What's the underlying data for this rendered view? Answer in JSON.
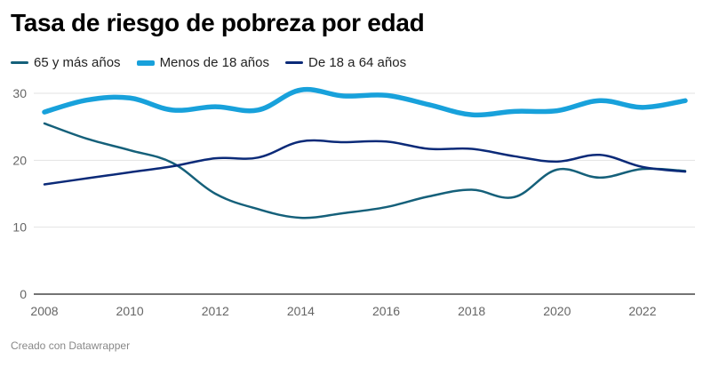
{
  "chart_data": {
    "type": "line",
    "title": "Tasa de riesgo de pobreza por edad",
    "xlabel": "",
    "ylabel": "",
    "x": [
      2008,
      2009,
      2010,
      2011,
      2012,
      2013,
      2014,
      2015,
      2016,
      2017,
      2018,
      2019,
      2020,
      2021,
      2022,
      2023
    ],
    "xlim": [
      2008,
      2023
    ],
    "ylim": [
      0,
      30
    ],
    "x_ticks": [
      "2008",
      "2010",
      "2012",
      "2014",
      "2016",
      "2018",
      "2020",
      "2022"
    ],
    "x_tick_values": [
      2008,
      2010,
      2012,
      2014,
      2016,
      2018,
      2020,
      2022
    ],
    "y_ticks": [
      "0",
      "10",
      "20",
      "30"
    ],
    "y_tick_values": [
      0,
      10,
      20,
      30
    ],
    "grid": true,
    "legend_position": "top-left",
    "series": [
      {
        "name": "65 y más años",
        "color": "#15607a",
        "values": [
          25.5,
          23.2,
          21.5,
          19.6,
          15.0,
          12.7,
          11.4,
          12.1,
          13.0,
          14.6,
          15.6,
          14.5,
          18.6,
          17.4,
          18.7,
          18.4
        ]
      },
      {
        "name": "Menos de 18 años",
        "color": "#18a1db",
        "values": [
          27.2,
          29.0,
          29.3,
          27.5,
          28.0,
          27.5,
          30.5,
          29.6,
          29.7,
          28.3,
          26.8,
          27.3,
          27.4,
          28.9,
          27.9,
          28.9
        ]
      },
      {
        "name": "De 18 a 64 años",
        "color": "#0b2a78",
        "values": [
          16.4,
          17.3,
          18.2,
          19.1,
          20.3,
          20.4,
          22.8,
          22.7,
          22.8,
          21.7,
          21.7,
          20.6,
          19.8,
          20.8,
          19.0,
          18.3
        ]
      }
    ]
  },
  "footer": "Creado con Datawrapper"
}
